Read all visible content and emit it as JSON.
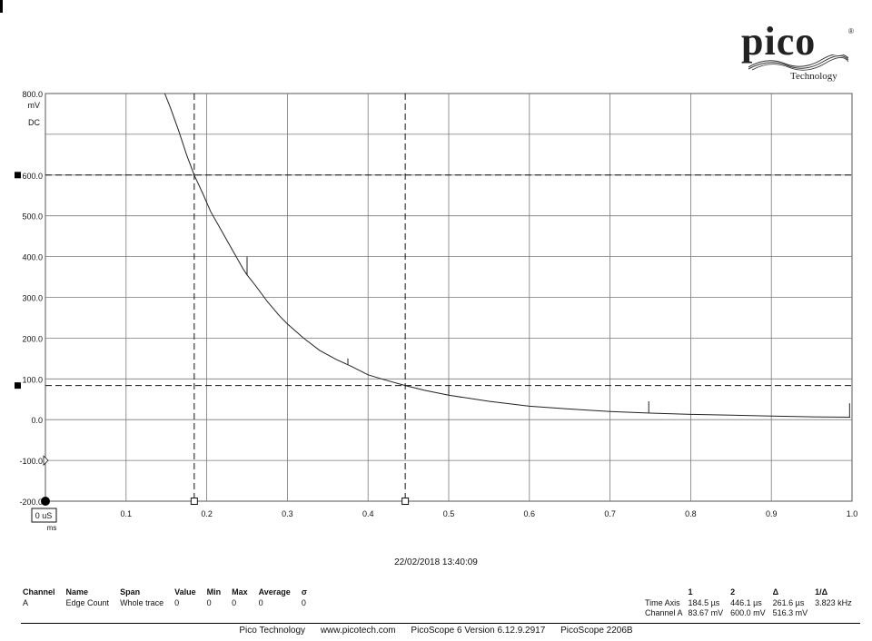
{
  "logo": {
    "word": "pico",
    "registered": "®",
    "subtitle": "Technology"
  },
  "timestamp": "22/02/2018 13:40:09",
  "measurements": {
    "headers": [
      "Channel",
      "Name",
      "Span",
      "Value",
      "Min",
      "Max",
      "Average",
      "σ"
    ],
    "rows": [
      [
        "A",
        "Edge Count",
        "Whole trace",
        "0",
        "0",
        "0",
        "0",
        "0"
      ]
    ]
  },
  "cursors": {
    "headers": [
      "",
      "1",
      "2",
      "Δ",
      "1/Δ"
    ],
    "rows": [
      [
        "Time Axis",
        "184.5 µs",
        "446.1 µs",
        "261.6 µs",
        "3.823 kHz"
      ],
      [
        "Channel A",
        "83.67 mV",
        "600.0 mV",
        "516.3 mV",
        ""
      ]
    ]
  },
  "footer": [
    "Pico Technology",
    "www.picotech.com",
    "PicoScope 6 Version 6.12.9.2917",
    "PicoScope 2206B"
  ],
  "chart_data": {
    "type": "line",
    "xlabel": "ms",
    "ylabel": "mV",
    "coupling": "DC",
    "xlim": [
      0,
      1.0
    ],
    "ylim": [
      -200,
      800
    ],
    "x_ticks": [
      0.1,
      0.2,
      0.3,
      0.4,
      0.5,
      0.6,
      0.7,
      0.8,
      0.9,
      1.0
    ],
    "x_tick_labels": [
      "0.1",
      "0.2",
      "0.3",
      "0.4",
      "0.5",
      "0.6",
      "0.7",
      "0.8",
      "0.9",
      "1.0"
    ],
    "x_origin_label": "0 uS",
    "y_ticks": [
      800,
      600,
      500,
      400,
      300,
      200,
      100,
      0,
      -100,
      -200
    ],
    "y_tick_labels": [
      "800.0",
      "600.0",
      "500.0",
      "400.0",
      "300.0",
      "200.0",
      "100.0",
      "0.0",
      "-100.0",
      "-200.0"
    ],
    "grid": true,
    "grid_divisions": {
      "x": 10,
      "y": 10
    },
    "cursors": {
      "time": [
        0.1845,
        0.4461
      ],
      "voltage": [
        600.0,
        83.67
      ]
    },
    "series": [
      {
        "values_x": [
          0.148,
          0.155,
          0.165,
          0.175,
          0.1845,
          0.195,
          0.205,
          0.215,
          0.225,
          0.235,
          0.245,
          0.25,
          0.26,
          0.275,
          0.29,
          0.3,
          0.32,
          0.34,
          0.36,
          0.38,
          0.4,
          0.42,
          0.4461,
          0.47,
          0.5,
          0.55,
          0.6,
          0.65,
          0.7,
          0.75,
          0.8,
          0.85,
          0.9,
          0.95,
          0.998
        ],
        "values_y": [
          800,
          765,
          710,
          650,
          600,
          555,
          510,
          475,
          440,
          405,
          370,
          355,
          330,
          290,
          255,
          235,
          200,
          170,
          148,
          130,
          110,
          98,
          83.67,
          72,
          60,
          45,
          33,
          26,
          20,
          16,
          13,
          11,
          9,
          7,
          6
        ]
      }
    ],
    "glitches": [
      {
        "x": 0.25,
        "y": 400
      },
      {
        "x": 0.375,
        "y": 150
      },
      {
        "x": 0.5,
        "y": 85
      },
      {
        "x": 0.748,
        "y": 45
      },
      {
        "x": 0.997,
        "y": 40
      }
    ]
  }
}
